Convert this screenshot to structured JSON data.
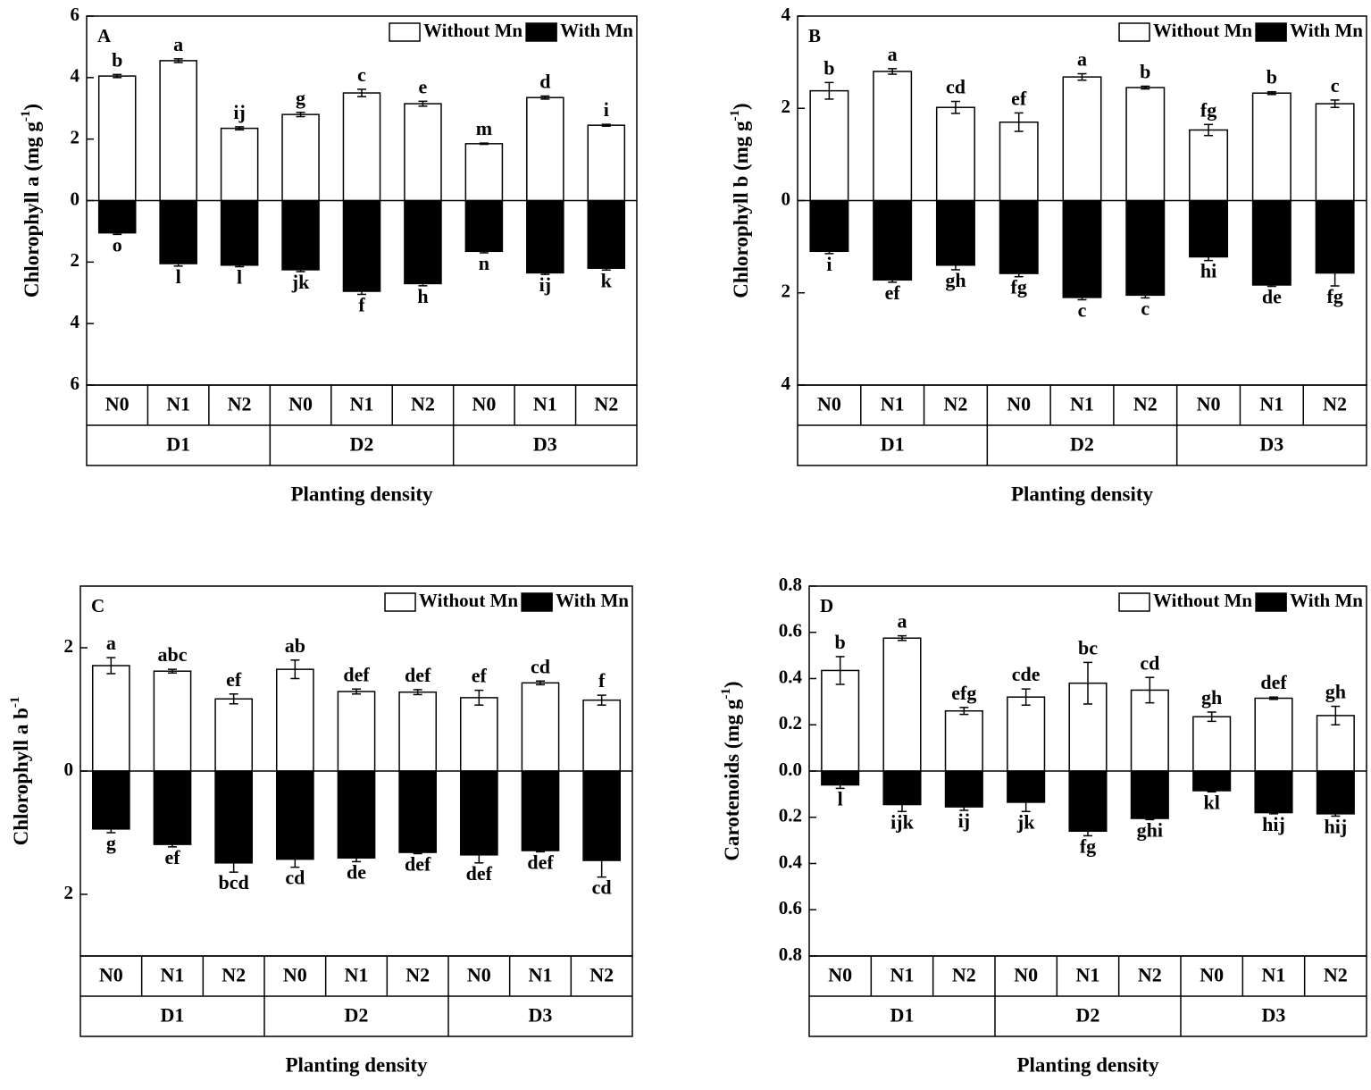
{
  "chart_data": [
    {
      "type": "bar",
      "panel": "A",
      "ylabel": [
        "Chlorophyll a (mg g",
        "-1",
        ")"
      ],
      "xlabel": "Planting density",
      "categories": [
        "N0",
        "N1",
        "N2",
        "N0",
        "N1",
        "N2",
        "N0",
        "N1",
        "N2"
      ],
      "groups": [
        "D1",
        "D2",
        "D3"
      ],
      "ylim": [
        -6,
        6
      ],
      "yticks": [
        {
          "value": -6,
          "label": "6"
        },
        {
          "value": -4,
          "label": "4"
        },
        {
          "value": -2,
          "label": "2"
        },
        0,
        2,
        4,
        6
      ],
      "legend": "upper right",
      "series": [
        {
          "name": "Without Mn",
          "color": "#ffffff",
          "values": [
            4.05,
            4.55,
            2.35,
            2.8,
            3.5,
            3.15,
            1.85,
            3.35,
            2.45
          ],
          "errors": [
            0.05,
            0.06,
            0.05,
            0.07,
            0.12,
            0.08,
            0.02,
            0.05,
            0.03
          ],
          "letters": [
            "b",
            "a",
            "ij",
            "g",
            "c",
            "e",
            "m",
            "d",
            "i"
          ]
        },
        {
          "name": "With Mn",
          "color": "#000000",
          "values": [
            -1.05,
            -2.05,
            -2.1,
            -2.25,
            -2.95,
            -2.7,
            -1.65,
            -2.35,
            -2.2
          ],
          "errors": [
            0.05,
            0.08,
            0.05,
            0.06,
            0.1,
            0.07,
            0.05,
            0.05,
            0.06
          ],
          "letters": [
            "o",
            "l",
            "l",
            "jk",
            "f",
            "h",
            "n",
            "ij",
            "k"
          ]
        }
      ]
    },
    {
      "type": "bar",
      "panel": "B",
      "ylabel": [
        "Chlorophyll b (mg g",
        "-1",
        ")"
      ],
      "xlabel": "Planting density",
      "categories": [
        "N0",
        "N1",
        "N2",
        "N0",
        "N1",
        "N2",
        "N0",
        "N1",
        "N2"
      ],
      "groups": [
        "D1",
        "D2",
        "D3"
      ],
      "ylim": [
        -4,
        4
      ],
      "yticks": [
        {
          "value": -4,
          "label": "4"
        },
        {
          "value": -2,
          "label": "2"
        },
        0,
        2,
        4
      ],
      "legend": "upper right",
      "series": [
        {
          "name": "Without Mn",
          "color": "#ffffff",
          "values": [
            2.38,
            2.8,
            2.02,
            1.7,
            2.68,
            2.45,
            1.53,
            2.33,
            2.1
          ],
          "errors": [
            0.18,
            0.06,
            0.13,
            0.2,
            0.07,
            0.03,
            0.12,
            0.03,
            0.08
          ],
          "letters": [
            "b",
            "a",
            "cd",
            "ef",
            "a",
            "b",
            "fg",
            "b",
            "c"
          ]
        },
        {
          "name": "With Mn",
          "color": "#000000",
          "values": [
            -1.1,
            -1.72,
            -1.4,
            -1.58,
            -2.1,
            -2.05,
            -1.22,
            -1.83,
            -1.57
          ],
          "errors": [
            0.05,
            0.05,
            0.1,
            0.07,
            0.05,
            0.06,
            0.08,
            0.03,
            0.28
          ],
          "letters": [
            "i",
            "ef",
            "gh",
            "fg",
            "c",
            "c",
            "hi",
            "de",
            "fg"
          ]
        }
      ]
    },
    {
      "type": "bar",
      "panel": "C",
      "ylabel": [
        "Chlorophyll a b",
        "-1"
      ],
      "xlabel": "Planting density",
      "categories": [
        "N0",
        "N1",
        "N2",
        "N0",
        "N1",
        "N2",
        "N0",
        "N1",
        "N2"
      ],
      "groups": [
        "D1",
        "D2",
        "D3"
      ],
      "ylim": [
        -3,
        3
      ],
      "yticks": [
        {
          "value": -2,
          "label": "2"
        },
        0,
        2
      ],
      "legend": "upper right",
      "series": [
        {
          "name": "Without Mn",
          "color": "#ffffff",
          "values": [
            1.71,
            1.62,
            1.17,
            1.65,
            1.29,
            1.28,
            1.19,
            1.43,
            1.15
          ],
          "errors": [
            0.13,
            0.03,
            0.08,
            0.15,
            0.04,
            0.04,
            0.12,
            0.03,
            0.08
          ],
          "letters": [
            "a",
            "abc",
            "ef",
            "ab",
            "def",
            "def",
            "ef",
            "cd",
            "f"
          ]
        },
        {
          "name": "With Mn",
          "color": "#000000",
          "values": [
            -0.94,
            -1.19,
            -1.49,
            -1.43,
            -1.41,
            -1.32,
            -1.36,
            -1.29,
            -1.45
          ],
          "errors": [
            0.06,
            0.04,
            0.15,
            0.13,
            0.06,
            0.02,
            0.13,
            0.02,
            0.27
          ],
          "letters": [
            "g",
            "ef",
            "bcd",
            "cd",
            "de",
            "def",
            "def",
            "def",
            "cd"
          ]
        }
      ]
    },
    {
      "type": "bar",
      "panel": "D",
      "ylabel": [
        "Carotenoids (mg g",
        "-1",
        ")"
      ],
      "xlabel": "Planting density",
      "categories": [
        "N0",
        "N1",
        "N2",
        "N0",
        "N1",
        "N2",
        "N0",
        "N1",
        "N2"
      ],
      "groups": [
        "D1",
        "D2",
        "D3"
      ],
      "ylim": [
        -0.8,
        0.8
      ],
      "yticks": [
        {
          "value": -0.8,
          "label": "0.8"
        },
        {
          "value": -0.6,
          "label": "0.6"
        },
        {
          "value": -0.4,
          "label": "0.4"
        },
        {
          "value": -0.2,
          "label": "0.2"
        },
        {
          "value": 0,
          "label": "0.0"
        },
        0.2,
        0.4,
        0.6,
        0.8
      ],
      "legend": "upper right",
      "series": [
        {
          "name": "Without Mn",
          "color": "#ffffff",
          "values": [
            0.435,
            0.575,
            0.26,
            0.32,
            0.38,
            0.35,
            0.235,
            0.315,
            0.24
          ],
          "errors": [
            0.06,
            0.01,
            0.015,
            0.035,
            0.09,
            0.055,
            0.02,
            0.005,
            0.04
          ],
          "letters": [
            "b",
            "a",
            "efg",
            "cde",
            "bc",
            "cd",
            "gh",
            "def",
            "gh"
          ]
        },
        {
          "name": "With Mn",
          "color": "#000000",
          "values": [
            -0.06,
            -0.145,
            -0.155,
            -0.135,
            -0.26,
            -0.205,
            -0.085,
            -0.18,
            -0.185
          ],
          "errors": [
            0.015,
            0.03,
            0.015,
            0.04,
            0.02,
            0.005,
            0.005,
            0.005,
            0.01
          ],
          "letters": [
            "l",
            "ijk",
            "ij",
            "jk",
            "fg",
            "ghi",
            "kl",
            "hij",
            "hij"
          ]
        }
      ]
    }
  ]
}
